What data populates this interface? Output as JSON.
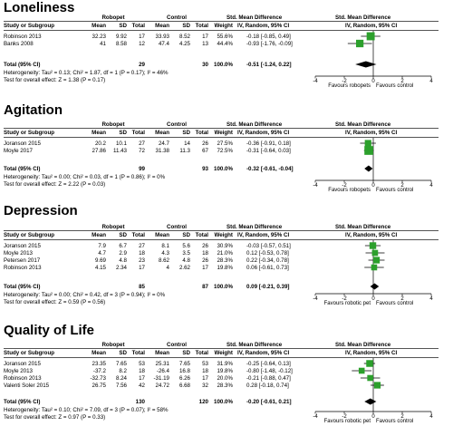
{
  "columns": {
    "study": "Study or Subgroup",
    "mean": "Mean",
    "sd": "SD",
    "total": "Total",
    "weight": "Weight",
    "smd_header": "Std. Mean Difference",
    "smd_method": "IV, Random, 95% CI"
  },
  "chart_data": [
    {
      "type": "forest",
      "title": "Loneliness",
      "group1": "Robopet",
      "group2": "Control",
      "studies": [
        {
          "name": "Robinson 2013",
          "m1": "32.23",
          "sd1": "9.92",
          "n1": "17",
          "m2": "33.93",
          "sd2": "8.52",
          "n2": "17",
          "weight": "55.6%",
          "ci_text": "-0.18 [-0.85, 0.49]",
          "est": -0.18,
          "lo": -0.85,
          "hi": 0.49
        },
        {
          "name": "Banks 2008",
          "m1": "41",
          "sd1": "8.58",
          "n1": "12",
          "m2": "47.4",
          "sd2": "4.25",
          "n2": "13",
          "weight": "44.4%",
          "ci_text": "-0.93 [-1.76, -0.09]",
          "est": -0.93,
          "lo": -1.76,
          "hi": -0.09
        }
      ],
      "total": {
        "label": "Total (95% CI)",
        "n1": "29",
        "n2": "30",
        "weight": "100.0%",
        "ci_text": "-0.51 [-1.24, 0.22]",
        "est": -0.51,
        "lo": -1.24,
        "hi": 0.22
      },
      "heterogeneity": "Heterogeneity: Tau² = 0.13; Chi² = 1.87, df = 1 (P = 0.17); I² = 46%",
      "overall": "Test for overall effect: Z = 1.38 (P = 0.17)",
      "xlim": [
        -4,
        4
      ],
      "ticks": [
        "-4",
        "-2",
        "0",
        "2",
        "4"
      ],
      "favours_left": "Favours robopets",
      "favours_right": "Favours control"
    },
    {
      "type": "forest",
      "title": "Agitation",
      "group1": "Robopet",
      "group2": "Control",
      "studies": [
        {
          "name": "Joranson 2015",
          "m1": "20.2",
          "sd1": "10.1",
          "n1": "27",
          "m2": "24.7",
          "sd2": "14",
          "n2": "26",
          "weight": "27.5%",
          "ci_text": "-0.36 [-0.91, 0.18]",
          "est": -0.36,
          "lo": -0.91,
          "hi": 0.18
        },
        {
          "name": "Moyle 2017",
          "m1": "27.86",
          "sd1": "11.43",
          "n1": "72",
          "m2": "31.38",
          "sd2": "11.3",
          "n2": "67",
          "weight": "72.5%",
          "ci_text": "-0.31 [-0.64, 0.03]",
          "est": -0.31,
          "lo": -0.64,
          "hi": 0.03
        }
      ],
      "total": {
        "label": "Total (95% CI)",
        "n1": "99",
        "n2": "93",
        "weight": "100.0%",
        "ci_text": "-0.32 [-0.61, -0.04]",
        "est": -0.32,
        "lo": -0.61,
        "hi": -0.04
      },
      "heterogeneity": "Heterogeneity: Tau² = 0.00; Chi² = 0.03, df = 1 (P = 0.86); I² = 0%",
      "overall": "Test for overall effect: Z = 2.22 (P = 0.03)",
      "xlim": [
        -4,
        4
      ],
      "ticks": [
        "-4",
        "-2",
        "0",
        "2",
        "4"
      ],
      "favours_left": "Favours robopets",
      "favours_right": "Favours control"
    },
    {
      "type": "forest",
      "title": "Depression",
      "group1": "Robopet",
      "group2": "Control",
      "studies": [
        {
          "name": "Joranson 2015",
          "m1": "7.9",
          "sd1": "6.7",
          "n1": "27",
          "m2": "8.1",
          "sd2": "5.6",
          "n2": "26",
          "weight": "30.9%",
          "ci_text": "-0.03 [-0.57, 0.51]",
          "est": -0.03,
          "lo": -0.57,
          "hi": 0.51
        },
        {
          "name": "Moyle 2013",
          "m1": "4.7",
          "sd1": "2.9",
          "n1": "18",
          "m2": "4.3",
          "sd2": "3.5",
          "n2": "18",
          "weight": "21.0%",
          "ci_text": "0.12 [-0.53, 0.78]",
          "est": 0.12,
          "lo": -0.53,
          "hi": 0.78
        },
        {
          "name": "Petersen 2017",
          "m1": "9.69",
          "sd1": "4.8",
          "n1": "23",
          "m2": "8.62",
          "sd2": "4.8",
          "n2": "26",
          "weight": "28.3%",
          "ci_text": "0.22 [-0.34, 0.78]",
          "est": 0.22,
          "lo": -0.34,
          "hi": 0.78
        },
        {
          "name": "Robinson 2013",
          "m1": "4.15",
          "sd1": "2.34",
          "n1": "17",
          "m2": "4",
          "sd2": "2.62",
          "n2": "17",
          "weight": "19.8%",
          "ci_text": "0.06 [-0.61, 0.73]",
          "est": 0.06,
          "lo": -0.61,
          "hi": 0.73
        }
      ],
      "total": {
        "label": "Total (95% CI)",
        "n1": "85",
        "n2": "87",
        "weight": "100.0%",
        "ci_text": "0.09 [-0.21, 0.39]",
        "est": 0.09,
        "lo": -0.21,
        "hi": 0.39
      },
      "heterogeneity": "Heterogeneity: Tau² = 0.00; Chi² = 0.42, df = 3 (P = 0.94); I² = 0%",
      "overall": "Test for overall effect: Z = 0.59 (P = 0.56)",
      "xlim": [
        -4,
        4
      ],
      "ticks": [
        "-4",
        "-2",
        "0",
        "2",
        "4"
      ],
      "favours_left": "Favours robotic pet",
      "favours_right": "Favours control"
    },
    {
      "type": "forest",
      "title": "Quality of Life",
      "group1": "Robopet",
      "group2": "Control",
      "studies": [
        {
          "name": "Joranson 2015",
          "m1": "23.35",
          "sd1": "7.65",
          "n1": "53",
          "m2": "25.31",
          "sd2": "7.65",
          "n2": "53",
          "weight": "31.9%",
          "ci_text": "-0.25 [-0.64, 0.13]",
          "est": -0.25,
          "lo": -0.64,
          "hi": 0.13
        },
        {
          "name": "Moyle 2013",
          "m1": "-37.2",
          "sd1": "8.2",
          "n1": "18",
          "m2": "-26.4",
          "sd2": "16.8",
          "n2": "18",
          "weight": "19.8%",
          "ci_text": "-0.80 [-1.48, -0.12]",
          "est": -0.8,
          "lo": -1.48,
          "hi": -0.12
        },
        {
          "name": "Robinson 2013",
          "m1": "-32.73",
          "sd1": "8.24",
          "n1": "17",
          "m2": "-31.19",
          "sd2": "6.26",
          "n2": "17",
          "weight": "20.0%",
          "ci_text": "-0.21 [-0.88, 0.47]",
          "est": -0.21,
          "lo": -0.88,
          "hi": 0.47
        },
        {
          "name": "Valenti Soler 2015",
          "m1": "26.75",
          "sd1": "7.56",
          "n1": "42",
          "m2": "24.72",
          "sd2": "6.68",
          "n2": "32",
          "weight": "28.3%",
          "ci_text": "0.28 [-0.18, 0.74]",
          "est": 0.28,
          "lo": -0.18,
          "hi": 0.74
        }
      ],
      "total": {
        "label": "Total (95% CI)",
        "n1": "130",
        "n2": "120",
        "weight": "100.0%",
        "ci_text": "-0.20 [-0.61, 0.21]",
        "est": -0.2,
        "lo": -0.61,
        "hi": 0.21
      },
      "heterogeneity": "Heterogeneity: Tau² = 0.10; Chi² = 7.09, df = 3 (P = 0.07); I² = 58%",
      "overall": "Test for overall effect: Z = 0.97 (P = 0.33)",
      "xlim": [
        -4,
        4
      ],
      "ticks": [
        "-4",
        "-2",
        "0",
        "2",
        "4"
      ],
      "favours_left": "Favours robotic pet",
      "favours_right": "Favours control"
    }
  ],
  "colors": {
    "study_marker": "#2ca02c",
    "summary_diamond": "#000000"
  }
}
